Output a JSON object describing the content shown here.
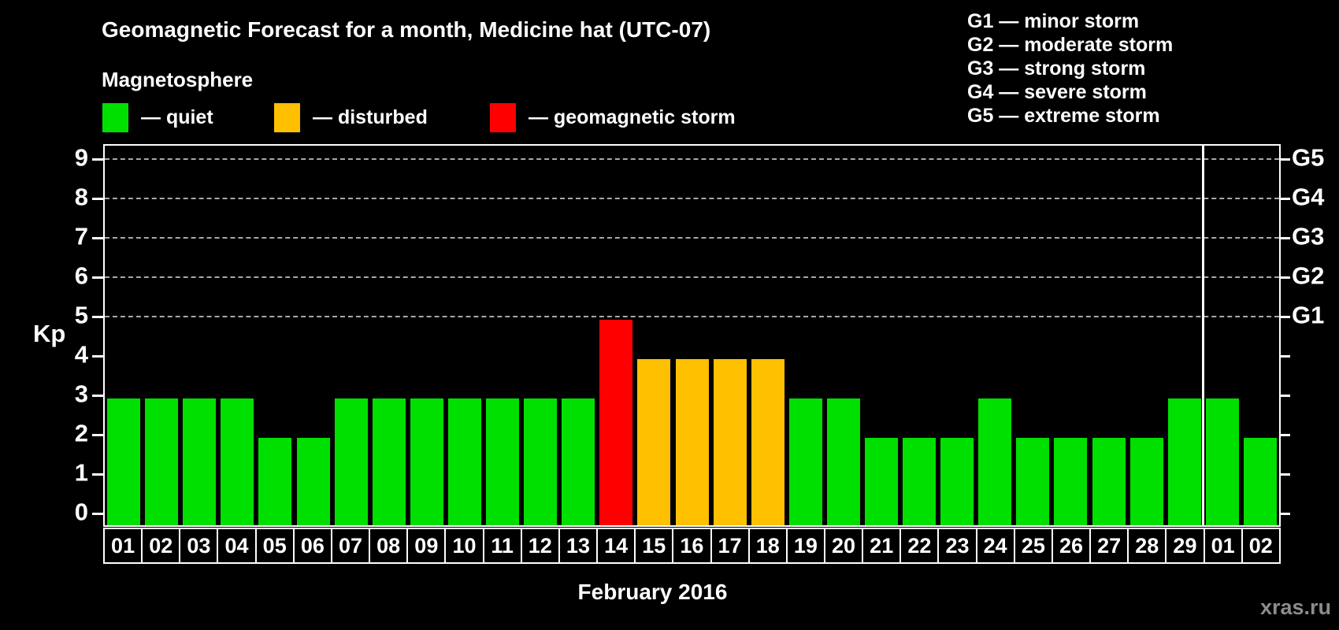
{
  "page": {
    "title": "Geomagnetic Forecast for a month, Medicine hat (UTC-07)",
    "watermark": "xras.ru"
  },
  "legend": {
    "heading": "Magnetosphere",
    "items": [
      {
        "name": "quiet",
        "label": "— quiet",
        "color": "#00e000"
      },
      {
        "name": "disturbed",
        "label": "— disturbed",
        "color": "#ffc000"
      },
      {
        "name": "storm",
        "label": "— geomagnetic storm",
        "color": "#ff0000"
      }
    ]
  },
  "gscale_legend": {
    "items": [
      "G1 — minor storm",
      "G2 — moderate storm",
      "G3 — strong storm",
      "G4 — severe storm",
      "G5 — extreme storm"
    ]
  },
  "chart_data": {
    "type": "bar",
    "title": "Geomagnetic Forecast for a month, Medicine hat (UTC-07)",
    "xlabel": "February 2016",
    "ylabel": "Kp",
    "ylim": [
      0,
      9
    ],
    "grid": "dashed horizontal at Kp 5-9 only",
    "left_ticks": [
      0,
      1,
      2,
      3,
      4,
      5,
      6,
      7,
      8,
      9
    ],
    "right_axis_labels": [
      {
        "kp": 5,
        "label": "G1"
      },
      {
        "kp": 6,
        "label": "G2"
      },
      {
        "kp": 7,
        "label": "G3"
      },
      {
        "kp": 8,
        "label": "G4"
      },
      {
        "kp": 9,
        "label": "G5"
      }
    ],
    "gridlines_at_kp": [
      5,
      6,
      7,
      8,
      9
    ],
    "month_separator_after_index": 28,
    "status_colors": {
      "quiet": "#00e000",
      "disturbed": "#ffc000",
      "storm": "#ff0000"
    },
    "days": [
      {
        "day": "01",
        "kp": 3,
        "status": "quiet"
      },
      {
        "day": "02",
        "kp": 3,
        "status": "quiet"
      },
      {
        "day": "03",
        "kp": 3,
        "status": "quiet"
      },
      {
        "day": "04",
        "kp": 3,
        "status": "quiet"
      },
      {
        "day": "05",
        "kp": 2,
        "status": "quiet"
      },
      {
        "day": "06",
        "kp": 2,
        "status": "quiet"
      },
      {
        "day": "07",
        "kp": 3,
        "status": "quiet"
      },
      {
        "day": "08",
        "kp": 3,
        "status": "quiet"
      },
      {
        "day": "09",
        "kp": 3,
        "status": "quiet"
      },
      {
        "day": "10",
        "kp": 3,
        "status": "quiet"
      },
      {
        "day": "11",
        "kp": 3,
        "status": "quiet"
      },
      {
        "day": "12",
        "kp": 3,
        "status": "quiet"
      },
      {
        "day": "13",
        "kp": 3,
        "status": "quiet"
      },
      {
        "day": "14",
        "kp": 5,
        "status": "storm"
      },
      {
        "day": "15",
        "kp": 4,
        "status": "disturbed"
      },
      {
        "day": "16",
        "kp": 4,
        "status": "disturbed"
      },
      {
        "day": "17",
        "kp": 4,
        "status": "disturbed"
      },
      {
        "day": "18",
        "kp": 4,
        "status": "disturbed"
      },
      {
        "day": "19",
        "kp": 3,
        "status": "quiet"
      },
      {
        "day": "20",
        "kp": 3,
        "status": "quiet"
      },
      {
        "day": "21",
        "kp": 2,
        "status": "quiet"
      },
      {
        "day": "22",
        "kp": 2,
        "status": "quiet"
      },
      {
        "day": "23",
        "kp": 2,
        "status": "quiet"
      },
      {
        "day": "24",
        "kp": 3,
        "status": "quiet"
      },
      {
        "day": "25",
        "kp": 2,
        "status": "quiet"
      },
      {
        "day": "26",
        "kp": 2,
        "status": "quiet"
      },
      {
        "day": "27",
        "kp": 2,
        "status": "quiet"
      },
      {
        "day": "28",
        "kp": 2,
        "status": "quiet"
      },
      {
        "day": "29",
        "kp": 3,
        "status": "quiet"
      },
      {
        "day": "01",
        "kp": 3,
        "status": "quiet"
      },
      {
        "day": "02",
        "kp": 2,
        "status": "quiet"
      }
    ]
  }
}
